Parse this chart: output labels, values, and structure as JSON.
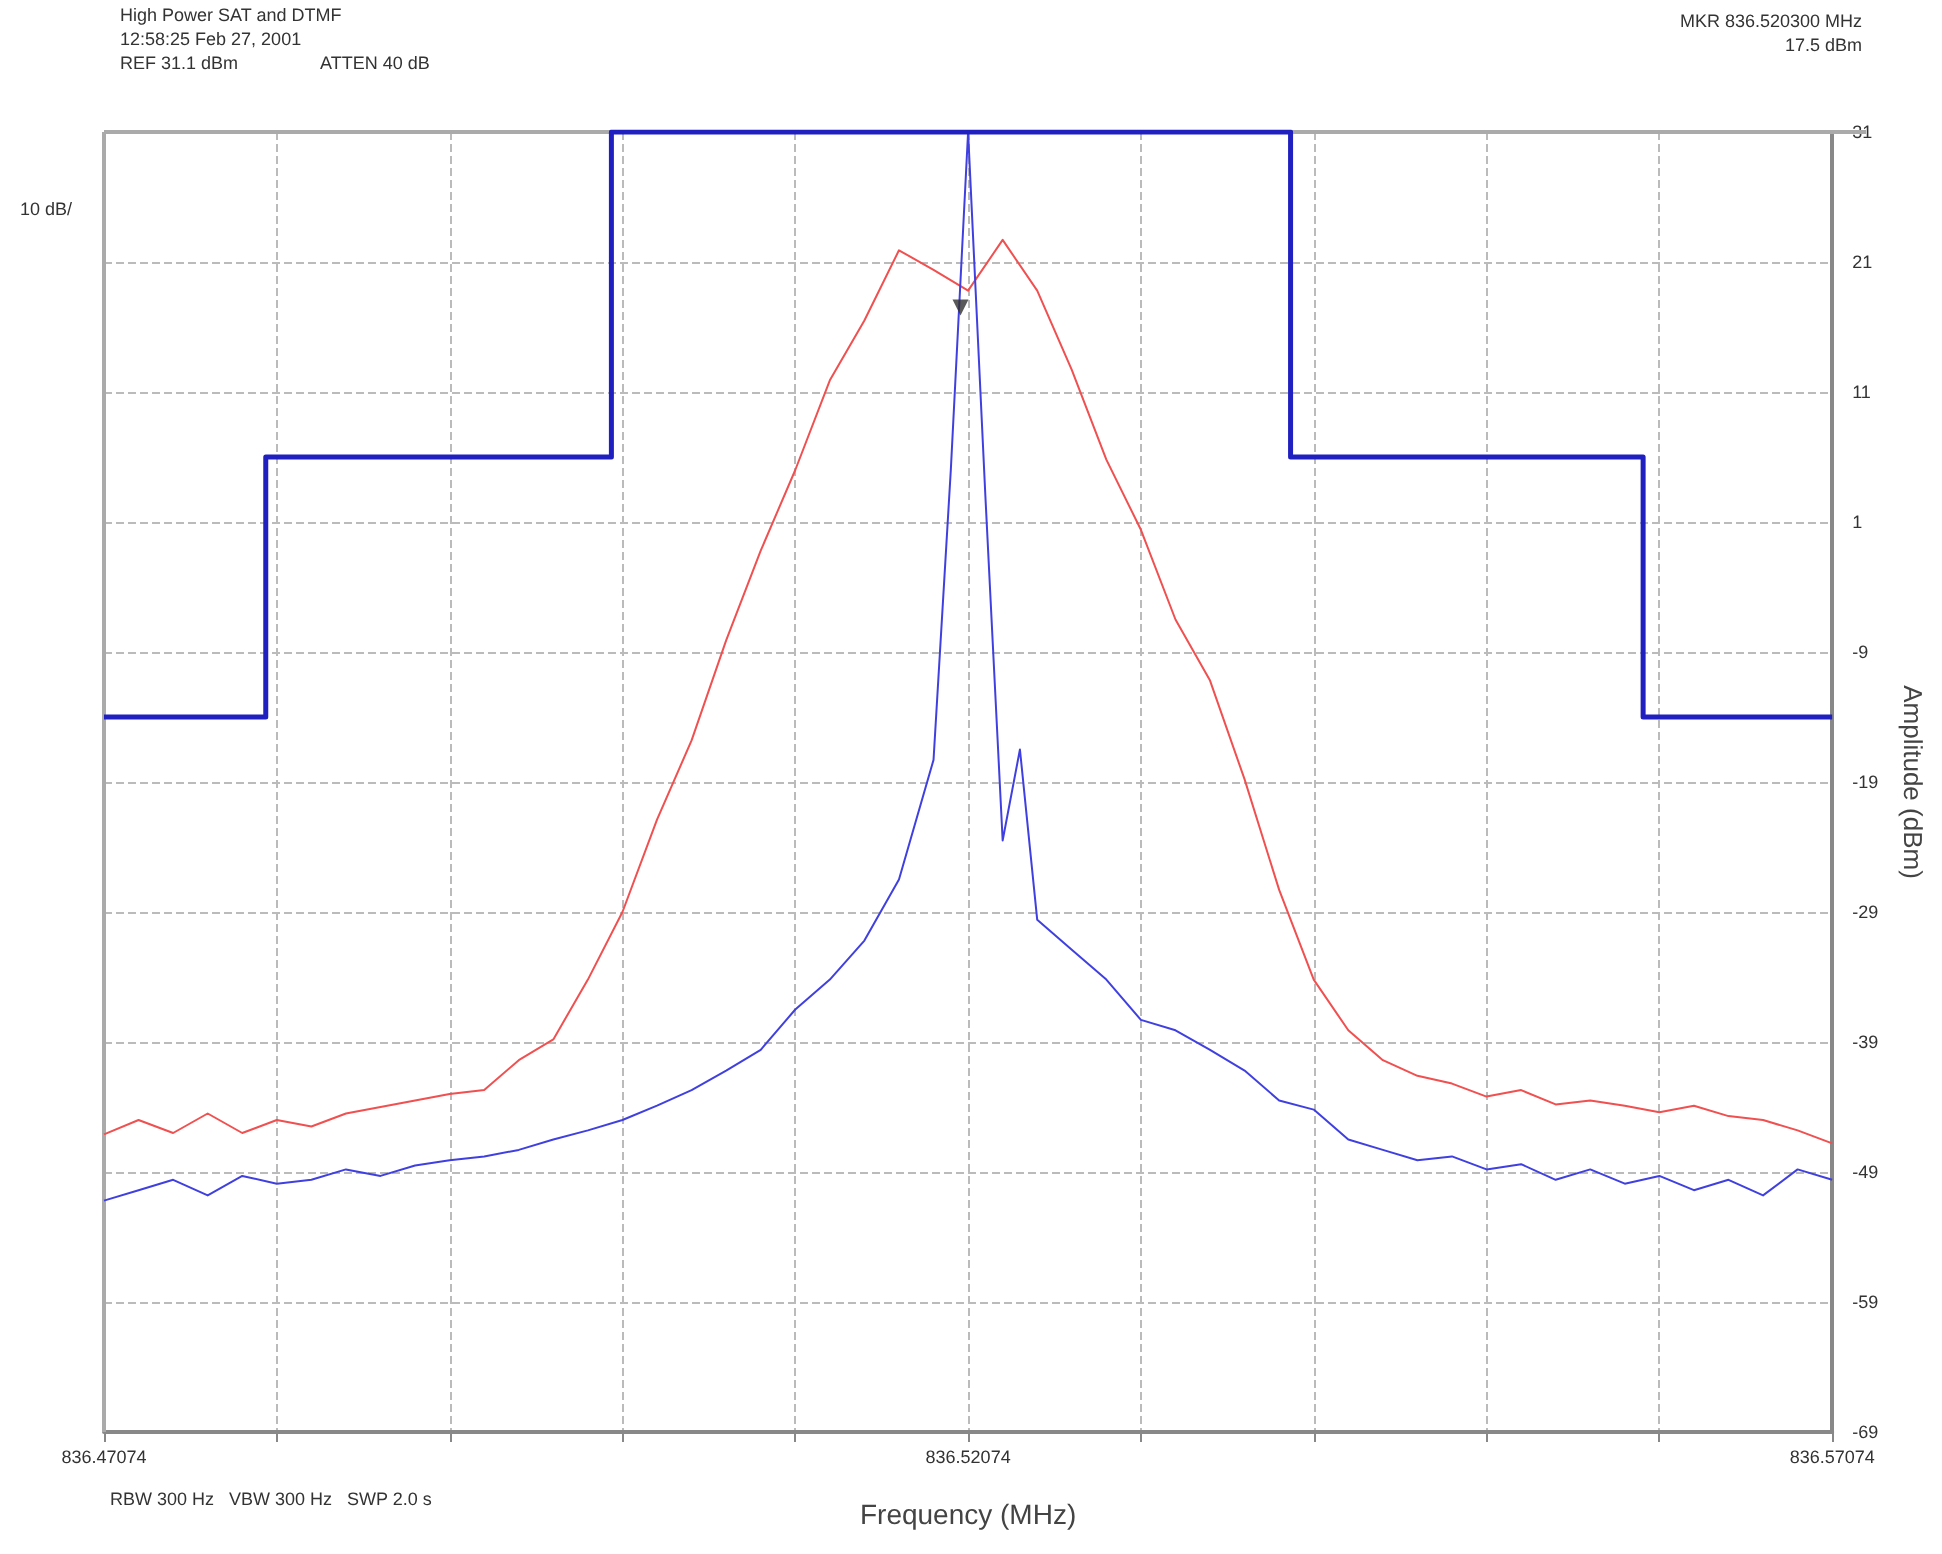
{
  "chart_data": {
    "type": "line",
    "title": "High Power SAT and DTMF",
    "xlabel": "Frequency (MHz)",
    "ylabel": "Amplitude (dBm)",
    "annotations": [
      "12:58:25 Feb 27, 2001",
      "REF 31.1 dBm",
      "ATTEN 40 dB",
      "10 dB/",
      "MKR 836.520300 MHz",
      "17.5 dBm",
      "RBW 300 Hz   VBW 300 Hz   SWP 2.0 s"
    ],
    "x": [
      836.47074,
      836.47274,
      836.47474,
      836.47674,
      836.47874,
      836.48074,
      836.48274,
      836.48474,
      836.48674,
      836.48874,
      836.49074,
      836.49274,
      836.49474,
      836.49674,
      836.49874,
      836.50074,
      836.50274,
      836.50474,
      836.50674,
      836.50874,
      836.51074,
      836.51274,
      836.51474,
      836.51674,
      836.51874,
      836.52074,
      836.52274,
      836.52474,
      836.52674,
      836.52874,
      836.53074,
      836.53274,
      836.53474,
      836.53674,
      836.53874,
      836.54074,
      836.54274,
      836.54474,
      836.54674,
      836.54874,
      836.55074,
      836.55274,
      836.55474,
      836.55674,
      836.55874,
      836.56074,
      836.56274,
      836.56474,
      836.56674,
      836.56874,
      836.57074
    ],
    "series": [
      {
        "color": "#f05050",
        "values": [
          -46.1,
          -45,
          -46,
          -44.5,
          -46,
          -45,
          -45.5,
          -44.5,
          -44,
          -43.5,
          -43,
          -42.7,
          -40.4,
          -38.8,
          -34.2,
          -29,
          -21.9,
          -15.8,
          -8.1,
          -1.2,
          5,
          11.9,
          16.5,
          21.9,
          20.4,
          18.8,
          22.7,
          18.8,
          12.7,
          5.8,
          0.4,
          -6.5,
          -11.2,
          -18.8,
          -27.3,
          -34.2,
          -38.1,
          -40.4,
          -41.6,
          -42.2,
          -43.2,
          -42.7,
          -43.8,
          -43.5,
          -43.9,
          -44.4,
          -43.9,
          -44.7,
          -45,
          -45.8,
          -46.8
        ]
      },
      {
        "color": "#4040e0",
        "x": [
          836.47074,
          836.47274,
          836.47474,
          836.47674,
          836.47874,
          836.48074,
          836.48274,
          836.48474,
          836.48674,
          836.48874,
          836.49074,
          836.49274,
          836.49474,
          836.49674,
          836.49874,
          836.50074,
          836.50274,
          836.50474,
          836.50674,
          836.50874,
          836.51074,
          836.51274,
          836.51474,
          836.51674,
          836.51874,
          836.51974,
          836.52074,
          836.52174,
          836.52274,
          836.52374,
          836.52474,
          836.52674,
          836.52874,
          836.53074,
          836.53274,
          836.53474,
          836.53674,
          836.53874,
          836.54074,
          836.54274,
          836.54474,
          836.54674,
          836.54874,
          836.55074,
          836.55274,
          836.55474,
          836.55674,
          836.55874,
          836.56074,
          836.56274,
          836.56474,
          836.56674,
          836.56874,
          836.57074
        ],
        "values": [
          -51.2,
          -50.4,
          -49.6,
          -50.8,
          -49.3,
          -49.9,
          -49.6,
          -48.8,
          -49.3,
          -48.5,
          -48.1,
          -47.8,
          -47.3,
          -46.5,
          -45.8,
          -45,
          -43.9,
          -42.7,
          -41.2,
          -39.6,
          -36.5,
          -34.2,
          -31.2,
          -26.5,
          -17.3,
          5,
          31,
          3,
          -23.5,
          -16.5,
          -29.6,
          -31.9,
          -34.2,
          -37.3,
          -38.1,
          -39.6,
          -41.2,
          -43.5,
          -44.2,
          -46.5,
          -47.3,
          -48.1,
          -47.8,
          -48.8,
          -48.4,
          -49.6,
          -48.8,
          -49.9,
          -49.3,
          -50.4,
          -49.6,
          -50.8,
          -48.8,
          -49.6
        ]
      },
      {
        "type": "step",
        "color": "#2020c0",
        "x": [
          836.47074,
          836.4801,
          836.5001,
          836.5394,
          836.5598,
          836.57074
        ],
        "values": [
          -14,
          6,
          31,
          6,
          -14,
          -14
        ]
      },
      {
        "type": "scatter",
        "color": "#303030",
        "marker": "triangle",
        "x": [
          836.5203
        ],
        "values": [
          17.5
        ]
      }
    ],
    "xlim": [
      836.47074,
      836.57074
    ],
    "xticks": [
      836.47074,
      {
        "value": 836.48074,
        "label": null
      },
      {
        "value": 836.49074,
        "label": null
      },
      {
        "value": 836.50074,
        "label": null
      },
      {
        "value": 836.51074,
        "label": null
      },
      836.52074,
      {
        "value": 836.53074,
        "label": null
      },
      {
        "value": 836.54074,
        "label": null
      },
      {
        "value": 836.55074,
        "label": null
      },
      {
        "value": 836.56074,
        "label": null
      },
      836.57074
    ],
    "ylim": [
      -69,
      31
    ],
    "yticks": [
      -69,
      -59,
      -49,
      -39,
      -29,
      -19,
      -9,
      1,
      11,
      21,
      31
    ],
    "grid": true
  }
}
